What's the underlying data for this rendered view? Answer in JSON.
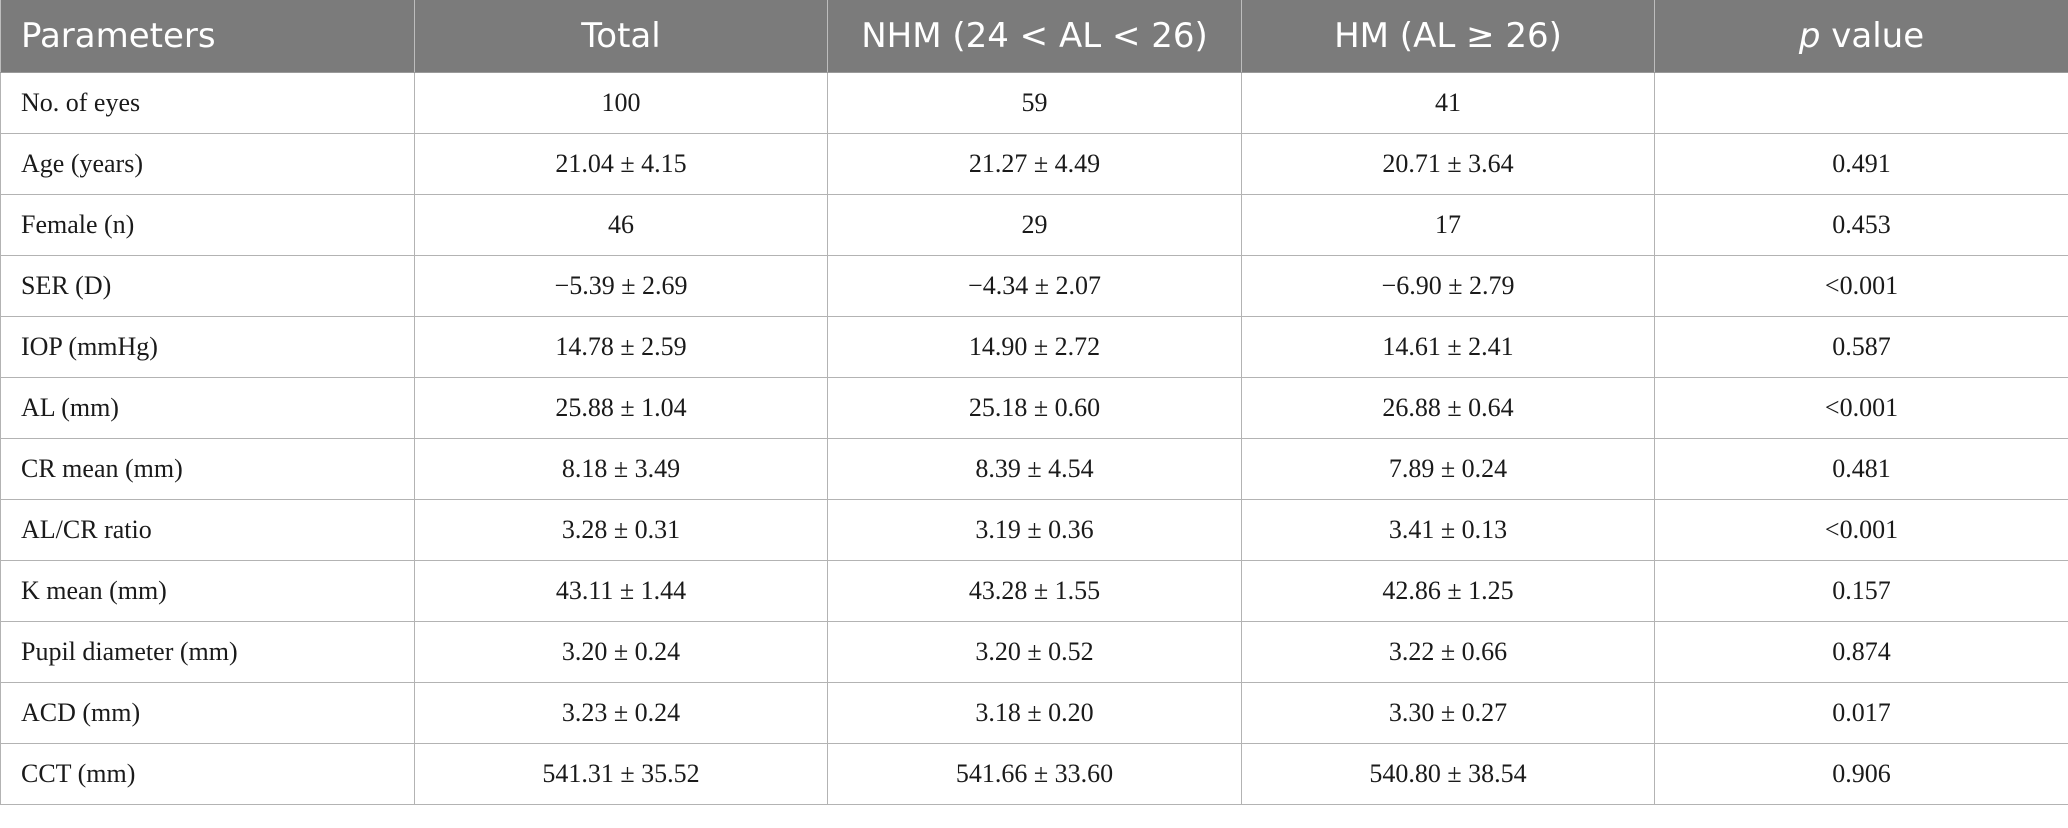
{
  "table": {
    "headers": [
      "Parameters",
      "Total",
      "NHM (24 < AL < 26)",
      "HM (AL ≥ 26)"
    ],
    "pvalue_header": {
      "italic": "p",
      "rest": " value"
    },
    "rows": [
      [
        "No. of eyes",
        "100",
        "59",
        "41",
        ""
      ],
      [
        "Age (years)",
        "21.04 ± 4.15",
        "21.27 ± 4.49",
        "20.71 ± 3.64",
        "0.491"
      ],
      [
        "Female (n)",
        "46",
        "29",
        "17",
        "0.453"
      ],
      [
        "SER (D)",
        "−5.39 ± 2.69",
        "−4.34 ± 2.07",
        "−6.90 ± 2.79",
        "<0.001"
      ],
      [
        "IOP (mmHg)",
        "14.78 ± 2.59",
        "14.90 ± 2.72",
        "14.61 ± 2.41",
        "0.587"
      ],
      [
        "AL (mm)",
        "25.88 ± 1.04",
        "25.18 ± 0.60",
        "26.88 ± 0.64",
        "<0.001"
      ],
      [
        "CR mean (mm)",
        "8.18 ± 3.49",
        "8.39 ± 4.54",
        "7.89 ± 0.24",
        "0.481"
      ],
      [
        "AL/CR ratio",
        "3.28 ± 0.31",
        "3.19 ± 0.36",
        "3.41 ± 0.13",
        "<0.001"
      ],
      [
        "K mean (mm)",
        "43.11 ± 1.44",
        "43.28 ± 1.55",
        "42.86 ± 1.25",
        "0.157"
      ],
      [
        "Pupil diameter (mm)",
        "3.20 ± 0.24",
        "3.20 ± 0.52",
        "3.22 ± 0.66",
        "0.874"
      ],
      [
        "ACD (mm)",
        "3.23 ± 0.24",
        "3.18 ± 0.20",
        "3.30 ± 0.27",
        "0.017"
      ],
      [
        "CCT (mm)",
        "541.31 ± 35.52",
        "541.66 ± 33.60",
        "540.80 ± 38.54",
        "0.906"
      ]
    ]
  }
}
